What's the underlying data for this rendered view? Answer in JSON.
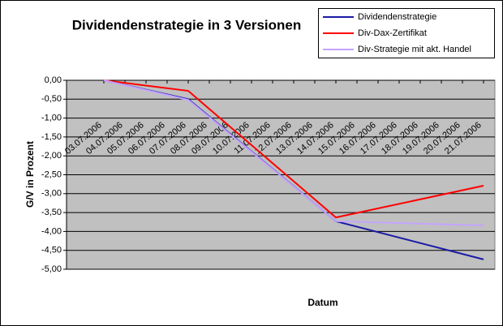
{
  "chart_data": {
    "type": "line",
    "title": "Dividendenstrategie in 3 Versionen",
    "x_label": "Datum",
    "y_label": "G/V in Prozent",
    "categories": [
      "03.07.2006",
      "04.07.2006",
      "05.07.2006",
      "06.07.2006",
      "07.07.2006",
      "08.07.2006",
      "09.07.2006",
      "10.07.2006",
      "11.07.2006",
      "12.07.2006",
      "13.07.2006",
      "14.07.2006",
      "15.07.2006",
      "16.07.2006",
      "17.07.2006",
      "18.07.2006",
      "19.07.2006",
      "20.07.2006",
      "21.07.2006"
    ],
    "series": [
      {
        "name": "Dividendenstrategie",
        "color": "#1a1aa6",
        "x": [
          "03.07.2006",
          "07.07.2006",
          "14.07.2006",
          "21.07.2006"
        ],
        "values": [
          0,
          -0.5,
          -3.73,
          -4.74
        ]
      },
      {
        "name": "Div-Dax-Zertifikat",
        "color": "#ff0000",
        "x": [
          "03.07.2006",
          "07.07.2006",
          "14.07.2006",
          "21.07.2006"
        ],
        "values": [
          0,
          -0.28,
          -3.63,
          -2.79
        ]
      },
      {
        "name": "Div-Strategie mit akt. Handel",
        "color": "#c4a4ff",
        "x": [
          "03.07.2006",
          "07.07.2006",
          "14.07.2006",
          "21.07.2006"
        ],
        "values": [
          0,
          -0.52,
          -3.73,
          -3.84
        ]
      }
    ],
    "ylim": [
      -5,
      0
    ],
    "yticks": [
      {
        "value": 0,
        "label": "0,00"
      },
      {
        "value": -0.5,
        "label": "-0,50"
      },
      {
        "value": -1,
        "label": "-1,00"
      },
      {
        "value": -1.5,
        "label": "-1,50"
      },
      {
        "value": -2,
        "label": "-2,00"
      },
      {
        "value": -2.5,
        "label": "-2,50"
      },
      {
        "value": -3,
        "label": "-3,00"
      },
      {
        "value": -3.5,
        "label": "-3,50"
      },
      {
        "value": -4,
        "label": "-4,00"
      },
      {
        "value": -4.5,
        "label": "-4,50"
      },
      {
        "value": -5,
        "label": "-5,00"
      }
    ],
    "grid": true,
    "legend": "top-right",
    "plot_background": "#c0c0c0"
  }
}
